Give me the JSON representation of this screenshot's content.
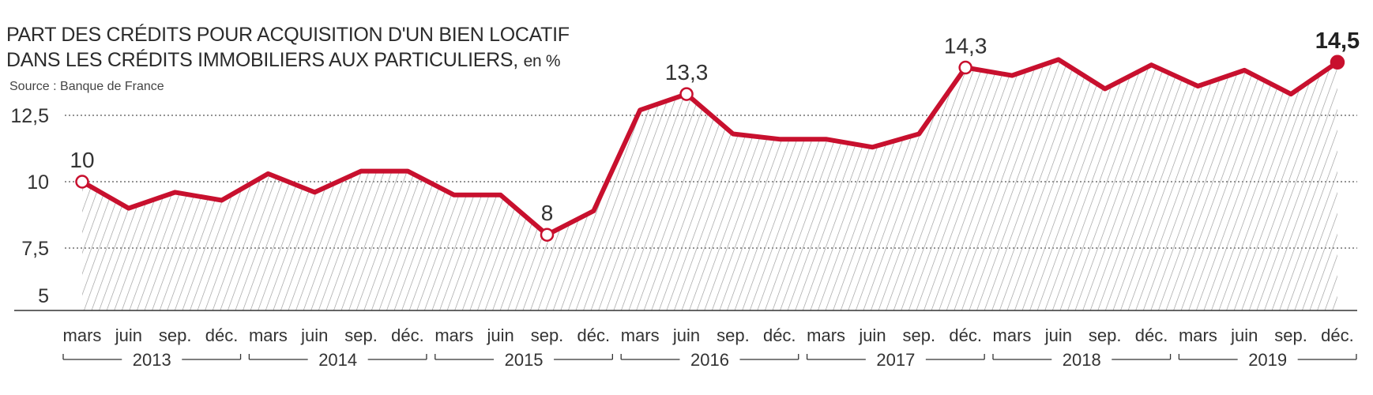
{
  "chart_data": {
    "type": "line",
    "title_line1": "PART DES CRÉDITS POUR ACQUISITION D'UN BIEN LOCATIF",
    "title_line2": "DANS LES CRÉDITS IMMOBILIERS AUX PARTICULIERS,",
    "title_unit": "en %",
    "source": "Source : Banque de France",
    "ylim": [
      5,
      14.5
    ],
    "yticks": [
      {
        "value": 12.5,
        "label": "12,5"
      },
      {
        "value": 10,
        "label": "10"
      },
      {
        "value": 7.5,
        "label": "7,5"
      },
      {
        "value": 5,
        "label": "5"
      }
    ],
    "grid": "horizontal dotted",
    "x_labels": [
      "mars",
      "juin",
      "sep.",
      "déc.",
      "mars",
      "juin",
      "sep.",
      "déc.",
      "mars",
      "juin",
      "sep.",
      "déc.",
      "mars",
      "juin",
      "sep.",
      "déc.",
      "mars",
      "juin",
      "sep.",
      "déc.",
      "mars",
      "juin",
      "sep.",
      "déc.",
      "mars",
      "juin",
      "sep.",
      "déc."
    ],
    "years": [
      "2013",
      "2014",
      "2015",
      "2016",
      "2017",
      "2018",
      "2019"
    ],
    "values": [
      10.0,
      9.0,
      9.6,
      9.3,
      10.3,
      9.6,
      10.4,
      10.4,
      9.5,
      9.5,
      8.0,
      8.9,
      12.7,
      13.3,
      11.8,
      11.6,
      11.6,
      11.3,
      11.8,
      14.3,
      14.0,
      14.6,
      13.5,
      14.4,
      13.6,
      14.2,
      13.3,
      14.5
    ],
    "annotations": [
      {
        "index": 0,
        "label": "10"
      },
      {
        "index": 10,
        "label": "8"
      },
      {
        "index": 13,
        "label": "13,3"
      },
      {
        "index": 19,
        "label": "14,3"
      },
      {
        "index": 27,
        "label": "14,5"
      }
    ],
    "colors": {
      "line": "#c8102e",
      "grid": "#555555",
      "hatch": "#9a9a9a",
      "text": "#333333"
    }
  }
}
